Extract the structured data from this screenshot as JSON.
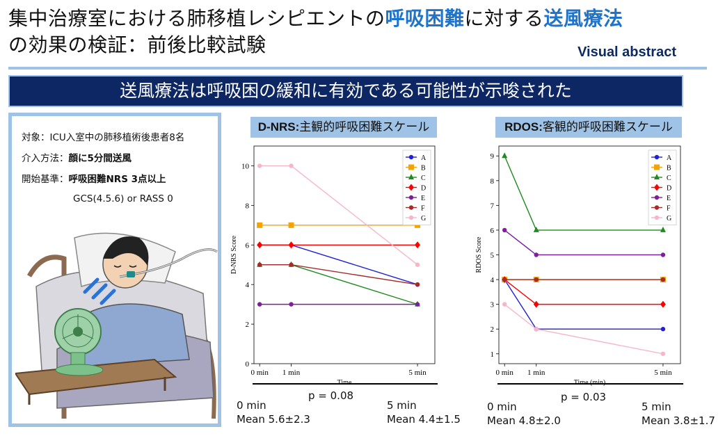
{
  "header": {
    "title_l1_a": "集中治療室における肺移植レシピエントの",
    "title_l1_b": "呼吸困難",
    "title_l1_c": "に対する",
    "title_l1_d": "送風療法",
    "title_l2": "の効果の検証：前後比較試験",
    "visual_abstract": "Visual abstract",
    "banner": "送風療法は呼吸困の緩和に有効である可能性が示唆された"
  },
  "study": {
    "target_label": "対象：",
    "target_value": "ICU入室中の肺移植術後患者8名",
    "intervention_label": "介入方法：",
    "intervention_value": "顔に5分間送風",
    "start_label": "開始基準：",
    "start_value": "呼吸困難NRS 3点以上",
    "start_value2": "GCS(4.5.6) or RASS 0"
  },
  "colors": {
    "A": "#1f1fd6",
    "B": "#f5a300",
    "C": "#1f8a1f",
    "D": "#ff0000",
    "E": "#7d1f9a",
    "F": "#a52a2a",
    "G": "#f7b6c8",
    "accent": "#1f73c9",
    "navy": "#0d2664",
    "panel": "#9ec3e6"
  },
  "chart_data": [
    {
      "type": "line",
      "title_bold": "D-NRS:",
      "title_rest": "主観的呼吸困難スケール",
      "xlabel": "Time",
      "ylabel": "D-NRS Score",
      "x": [
        0,
        1,
        5
      ],
      "x_tick_labels": [
        "0 min",
        "1 min",
        "5 min"
      ],
      "ylim": [
        0,
        11
      ],
      "y_ticks": [
        0,
        2,
        4,
        6,
        8,
        10
      ],
      "legend_position": "top-right",
      "series": [
        {
          "name": "A",
          "marker": "circle",
          "values": [
            6,
            6,
            4
          ]
        },
        {
          "name": "B",
          "marker": "square",
          "values": [
            7,
            7,
            7
          ]
        },
        {
          "name": "C",
          "marker": "triangle",
          "values": [
            5,
            5,
            3
          ]
        },
        {
          "name": "D",
          "marker": "diamond",
          "values": [
            6,
            6,
            6
          ]
        },
        {
          "name": "E",
          "marker": "circle",
          "values": [
            3,
            3,
            3
          ]
        },
        {
          "name": "F",
          "marker": "circle",
          "values": [
            5,
            5,
            4
          ]
        },
        {
          "name": "G",
          "marker": "circle",
          "values": [
            10,
            10,
            5
          ]
        }
      ],
      "p_value": "p = 0.08",
      "stat_left_time": "0 min",
      "stat_left_mean": "Mean 5.6±2.3",
      "stat_right_time": "5 min",
      "stat_right_mean": "Mean 4.4±1.5"
    },
    {
      "type": "line",
      "title_bold": "RDOS:",
      "title_rest": "客観的呼吸困難スケール",
      "xlabel": "Time (min)",
      "ylabel": "RDOS Score",
      "x": [
        0,
        1,
        5
      ],
      "x_tick_labels": [
        "0 min",
        "1 min",
        "5 min"
      ],
      "ylim": [
        0.6,
        9.4
      ],
      "y_ticks": [
        1,
        2,
        3,
        4,
        5,
        6,
        7,
        8,
        9
      ],
      "legend_position": "top-right",
      "series": [
        {
          "name": "A",
          "marker": "circle",
          "values": [
            4,
            2,
            2
          ]
        },
        {
          "name": "B",
          "marker": "square",
          "values": [
            4,
            4,
            4
          ]
        },
        {
          "name": "C",
          "marker": "triangle",
          "values": [
            9,
            6,
            6
          ]
        },
        {
          "name": "D",
          "marker": "diamond",
          "values": [
            4,
            3,
            3
          ]
        },
        {
          "name": "E",
          "marker": "circle",
          "values": [
            6,
            5,
            5
          ]
        },
        {
          "name": "F",
          "marker": "circle",
          "values": [
            4,
            4,
            4
          ]
        },
        {
          "name": "G",
          "marker": "circle",
          "values": [
            3,
            2,
            1
          ]
        }
      ],
      "p_value": "p = 0.03",
      "stat_left_time": "0 min",
      "stat_left_mean": "Mean 4.8±2.0",
      "stat_right_time": "5 min",
      "stat_right_mean": "Mean 3.8±1.7"
    }
  ]
}
